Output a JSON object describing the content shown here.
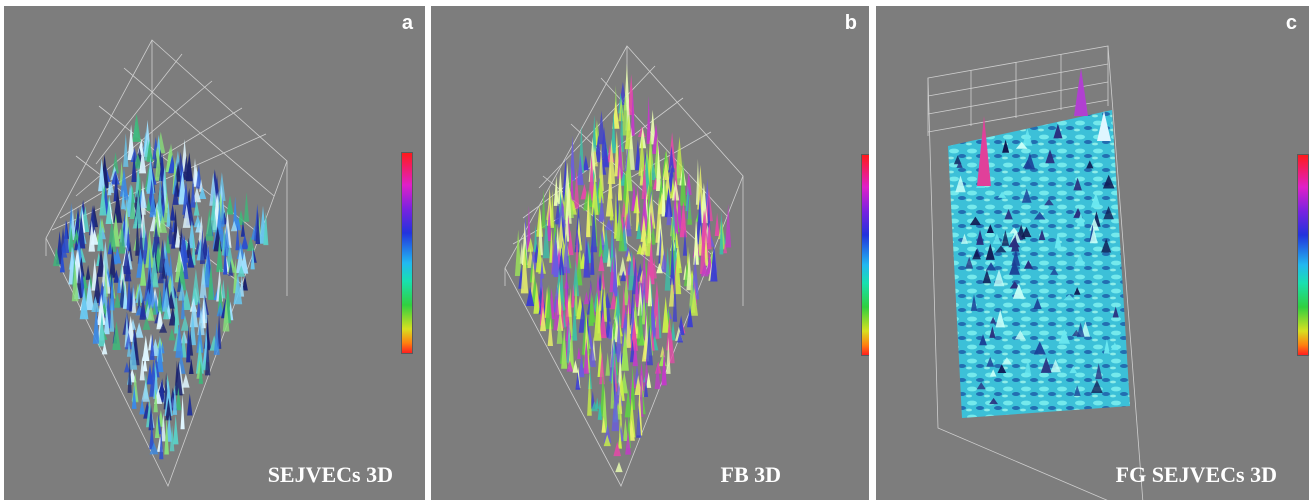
{
  "panels": [
    {
      "letter": "a",
      "caption": "SEJVECs  3D"
    },
    {
      "letter": "b",
      "caption": "FB  3D"
    },
    {
      "letter": "c",
      "caption": "FG SEJVECs  3D"
    }
  ],
  "colorbar": {
    "colors_top_to_bottom": [
      "#ff1a1a",
      "#e020c8",
      "#7a22e0",
      "#2233dd",
      "#22b8f0",
      "#18e0b0",
      "#30d040",
      "#d8e020",
      "#ff8010",
      "#ff2020"
    ]
  },
  "colors": {
    "panel_background": "#7d7d7d",
    "grid": "#cfcfcf",
    "caption_text": "#ffffff"
  }
}
